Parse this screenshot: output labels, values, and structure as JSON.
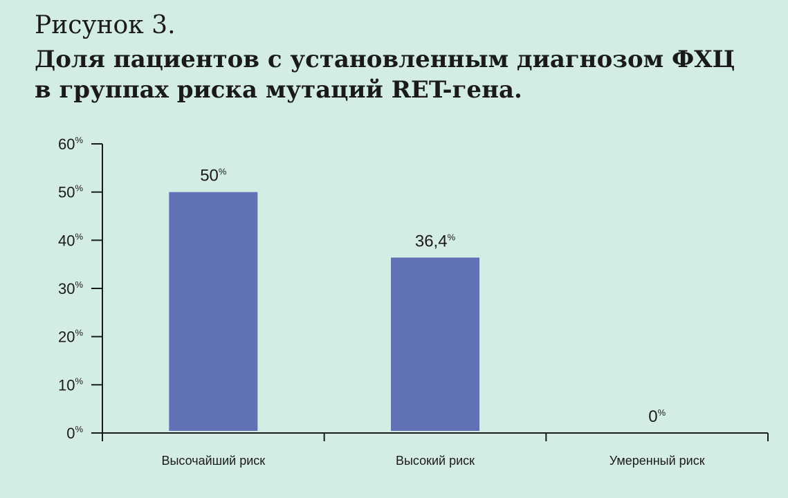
{
  "figure": {
    "label": "Рисунок 3.",
    "title_line1": "Доля пациентов с установленным диагнозом ФХЦ",
    "title_line2": "в группах риска мутаций RET-гена."
  },
  "colors": {
    "background": "#d4ece6",
    "bar": "#6072b5",
    "axis": "#1a1a1a"
  },
  "chart_data": {
    "type": "bar",
    "title": "Доля пациентов с установленным диагнозом ФХЦ в группах риска мутаций RET-гена.",
    "categories": [
      "Высочайший риск",
      "Высокий риск",
      "Умеренный риск"
    ],
    "values": [
      50,
      36.4,
      0
    ],
    "data_labels": [
      "50",
      "36,4",
      "0"
    ],
    "unit": "%",
    "xlabel": "",
    "ylabel": "",
    "ylim": [
      0,
      60
    ],
    "yticks": [
      0,
      10,
      20,
      30,
      40,
      50,
      60
    ],
    "grid": false,
    "legend": "none"
  }
}
